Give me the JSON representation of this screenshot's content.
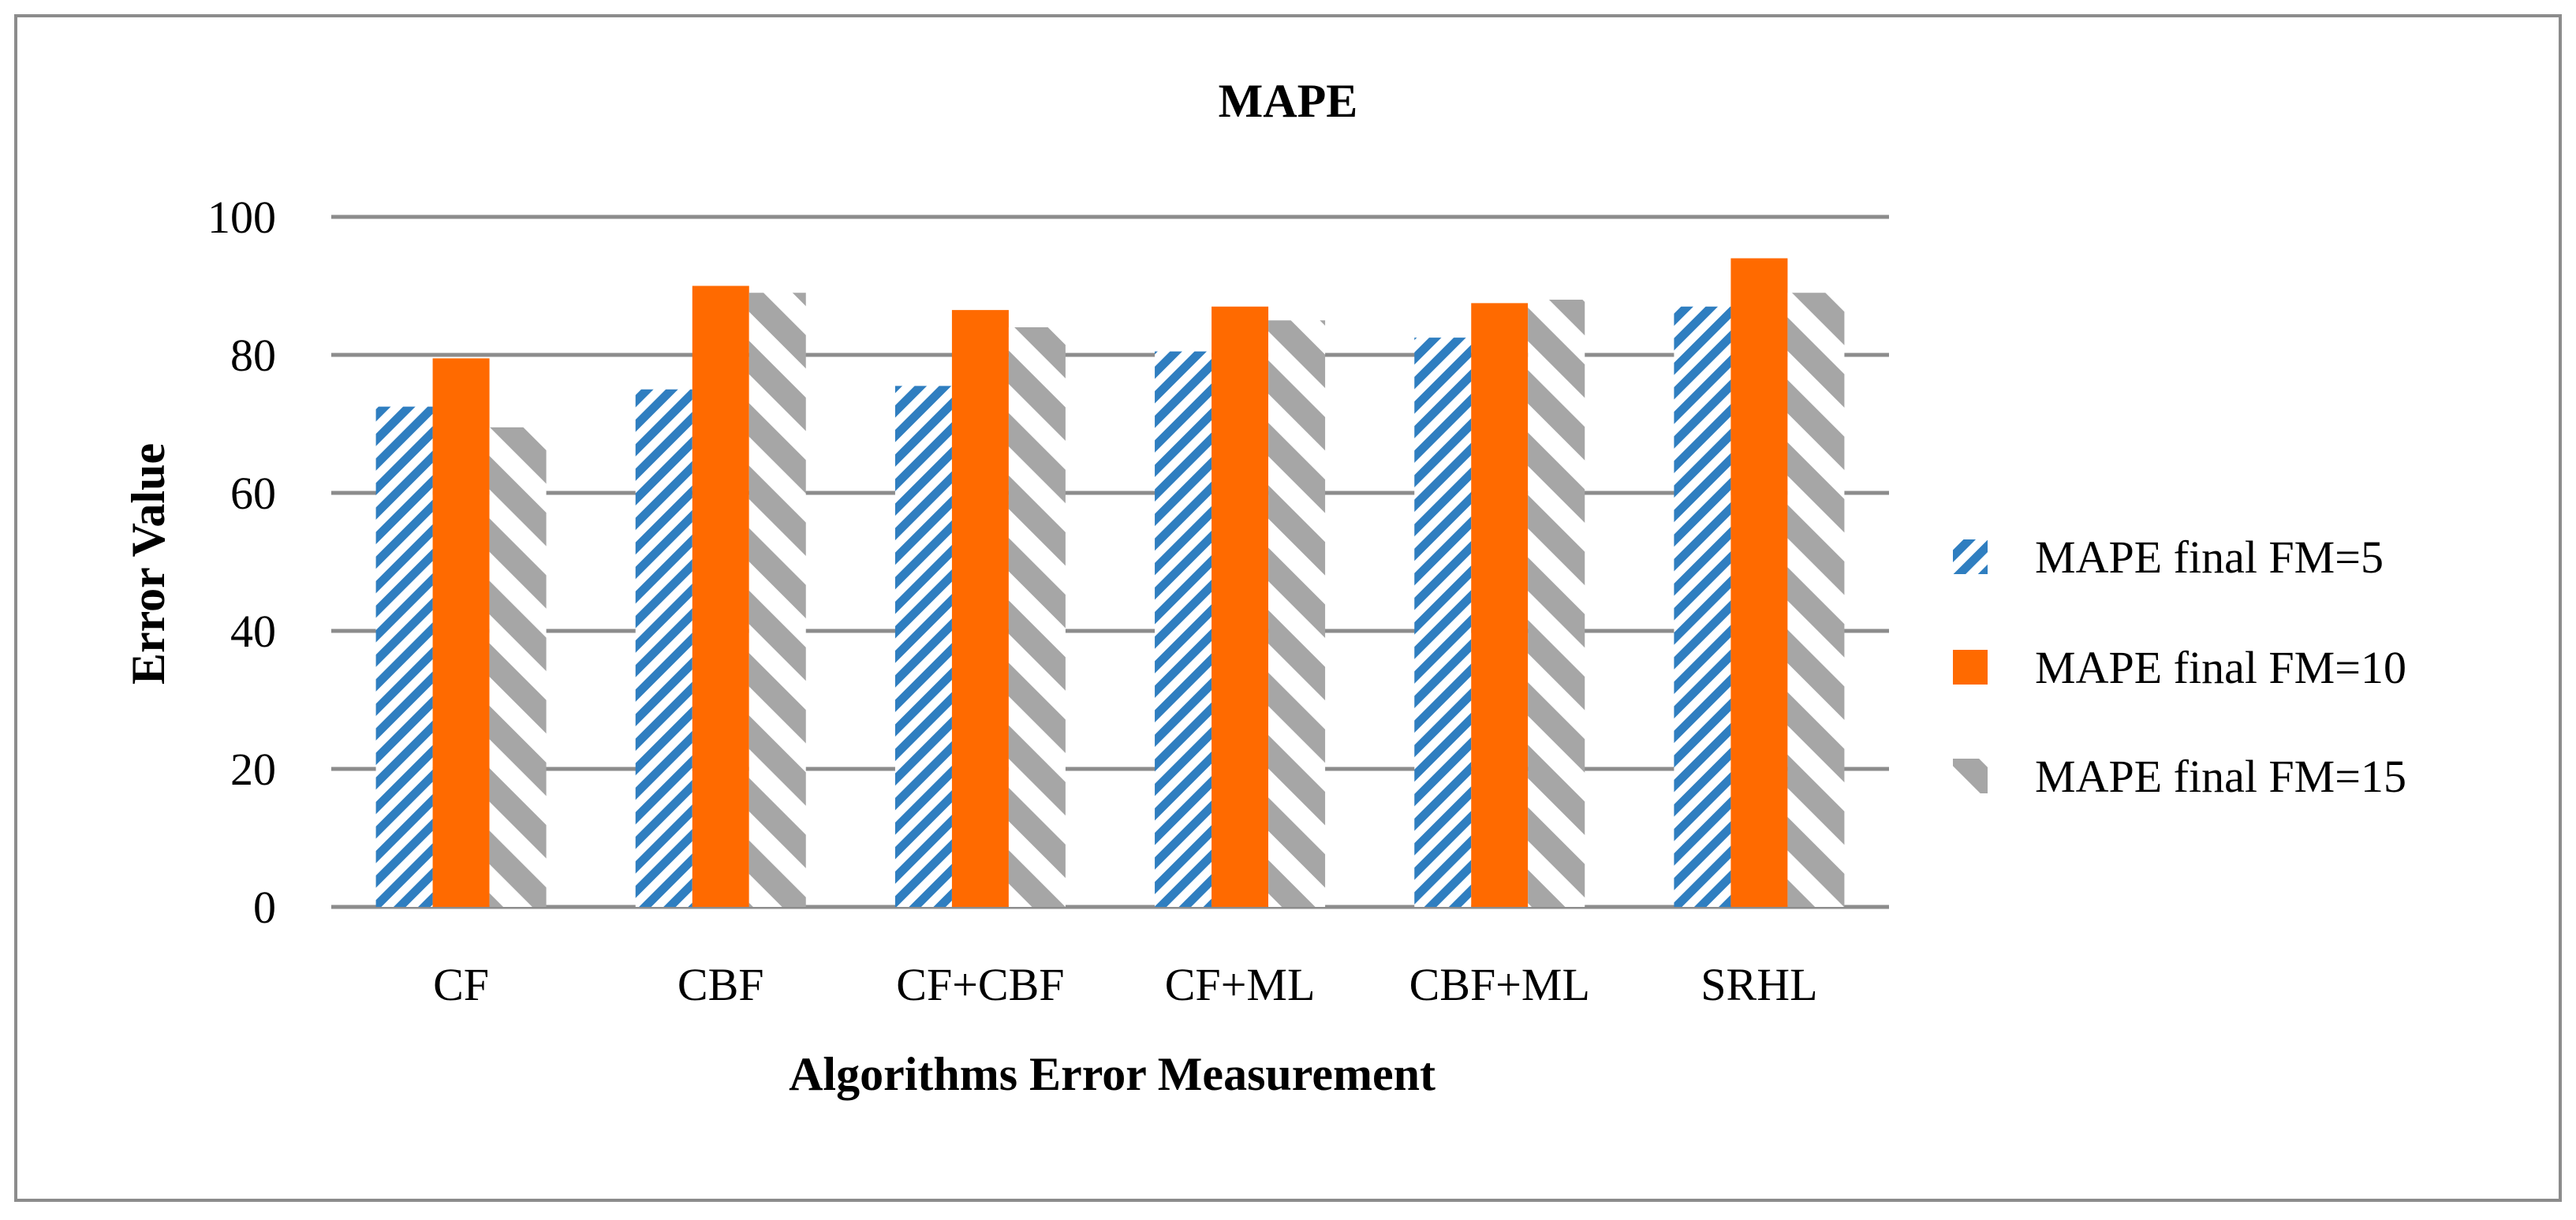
{
  "chart_data": {
    "type": "bar",
    "title": "MAPE",
    "xlabel": "Algorithms Error Measurement",
    "ylabel": "Error Value",
    "categories": [
      "CF",
      "CBF",
      "CF+CBF",
      "CF+ML",
      "CBF+ML",
      "SRHL"
    ],
    "series": [
      {
        "name": "MAPE final FM=5",
        "values": [
          72.5,
          75,
          75.5,
          80.5,
          82.5,
          87
        ],
        "color": "#2f7ec0",
        "pattern": "diagonal-stripes-dense"
      },
      {
        "name": "MAPE final FM=10",
        "values": [
          79.5,
          90,
          86.5,
          87,
          87.5,
          94
        ],
        "color": "#ff6a00",
        "pattern": "solid"
      },
      {
        "name": "MAPE final FM=15",
        "values": [
          69.5,
          89,
          84,
          85,
          88,
          89
        ],
        "color": "#a6a6a6",
        "pattern": "diagonal-stripes-wide"
      }
    ],
    "ylim": [
      0,
      100
    ],
    "yticks": [
      0,
      20,
      40,
      60,
      80,
      100
    ],
    "grid": true,
    "legend_position": "right"
  }
}
